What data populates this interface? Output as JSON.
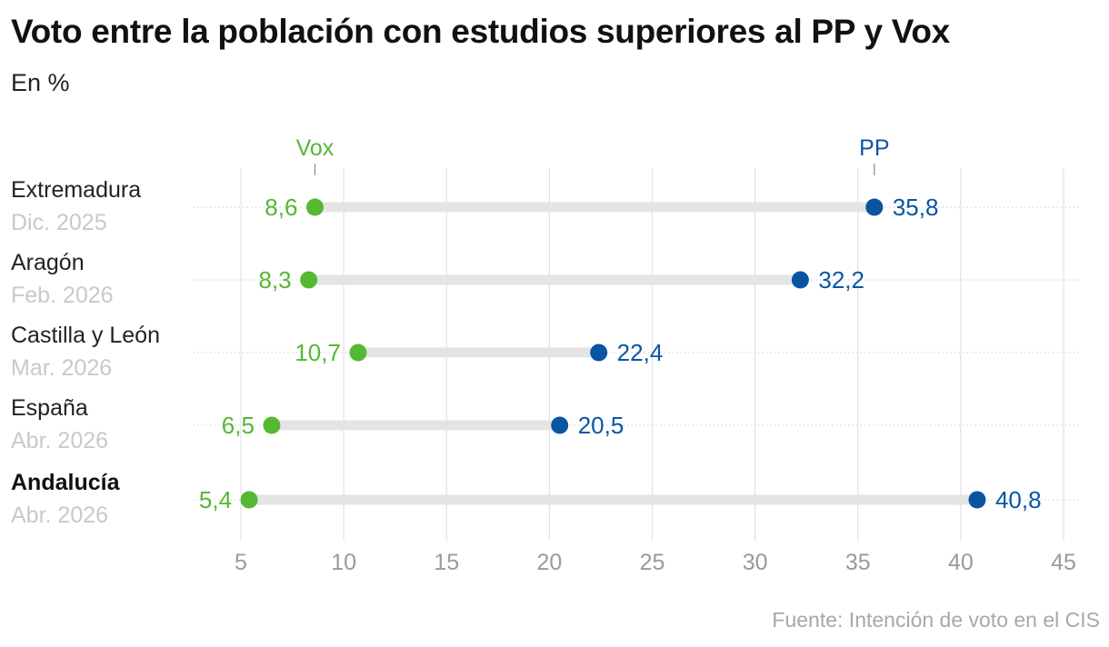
{
  "title": "Voto entre la población con estudios superiores al PP y Vox",
  "subtitle": "En %",
  "source": "Fuente: Intención de voto en el CIS",
  "colors": {
    "vox": "#55b833",
    "pp": "#0a55a3",
    "bar": "#e4e4e4",
    "grid": "#e2e2e2"
  },
  "chart_data": {
    "type": "dumbbell",
    "series": [
      {
        "name": "Vox",
        "color": "#55b833"
      },
      {
        "name": "PP",
        "color": "#0a55a3"
      }
    ],
    "xlim": [
      5,
      45
    ],
    "xticks": [
      5,
      10,
      15,
      20,
      25,
      30,
      35,
      40,
      45
    ],
    "grid": true,
    "rows": [
      {
        "region": "Extremadura",
        "date": "Dic. 2025",
        "vox": 8.6,
        "pp": 35.8,
        "vox_label": "8,6",
        "pp_label": "35,8",
        "bold": false
      },
      {
        "region": "Aragón",
        "date": "Feb. 2026",
        "vox": 8.3,
        "pp": 32.2,
        "vox_label": "8,3",
        "pp_label": "32,2",
        "bold": false
      },
      {
        "region": "Castilla y León",
        "date": "Mar. 2026",
        "vox": 10.7,
        "pp": 22.4,
        "vox_label": "10,7",
        "pp_label": "22,4",
        "bold": false
      },
      {
        "region": "España",
        "date": "Abr. 2026",
        "vox": 6.5,
        "pp": 20.5,
        "vox_label": "6,5",
        "pp_label": "20,5",
        "bold": false
      },
      {
        "region": "Andalucía",
        "date": "Abr. 2026",
        "vox": 5.4,
        "pp": 40.8,
        "vox_label": "5,4",
        "pp_label": "40,8",
        "bold": true
      }
    ]
  }
}
